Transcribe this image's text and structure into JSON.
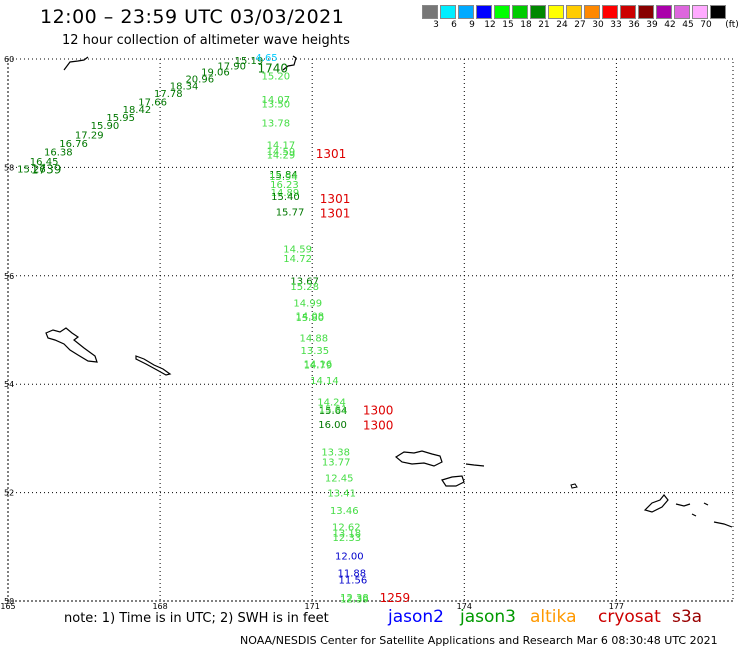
{
  "title": "12:00 – 23:59 UTC 03/03/2021",
  "subtitle": "12 hour collection of altimeter wave heights",
  "legend": {
    "unit": "(ft)",
    "bins": [
      {
        "label": "3",
        "color": "#777777"
      },
      {
        "label": "6",
        "color": "#00eeff"
      },
      {
        "label": "9",
        "color": "#00aaff"
      },
      {
        "label": "12",
        "color": "#0000ff"
      },
      {
        "label": "15",
        "color": "#00ff00"
      },
      {
        "label": "18",
        "color": "#00cc00"
      },
      {
        "label": "21",
        "color": "#008800"
      },
      {
        "label": "24",
        "color": "#ffff00"
      },
      {
        "label": "27",
        "color": "#ffcc00"
      },
      {
        "label": "30",
        "color": "#ff8800"
      },
      {
        "label": "33",
        "color": "#ff0000"
      },
      {
        "label": "36",
        "color": "#cc0000"
      },
      {
        "label": "39",
        "color": "#880000"
      },
      {
        "label": "42",
        "color": "#aa00aa"
      },
      {
        "label": "45",
        "color": "#dd66dd"
      },
      {
        "label": "70",
        "color": "#ffaaff"
      },
      {
        "label": "",
        "color": "#000000"
      }
    ]
  },
  "axes": {
    "lat_labels": [
      "60",
      "58",
      "56",
      "54",
      "52",
      "50"
    ],
    "lat_values": [
      60,
      58,
      56,
      54,
      52,
      50
    ],
    "lon_labels": [
      "165",
      "168",
      "171",
      "174",
      "177"
    ],
    "lon_values": [
      165,
      168,
      171,
      174,
      177
    ],
    "lon_range": [
      165,
      179.3
    ],
    "lat_range": [
      50,
      60
    ]
  },
  "colors": {
    "jason2": "#0000cc",
    "jason3": "#00aa00",
    "light_green": "#44dd44",
    "dark_green": "#007700",
    "cyan": "#00ccff",
    "red": "#dd0000"
  },
  "observations": [
    {
      "text": "15.26",
      "lon": 165.18,
      "lat": 57.98,
      "c": "dark_green"
    },
    {
      "text": "16.45",
      "lon": 165.43,
      "lat": 58.12,
      "c": "dark_green"
    },
    {
      "text": "16.38",
      "lon": 165.71,
      "lat": 58.29,
      "c": "dark_green"
    },
    {
      "text": "16.76",
      "lon": 166.01,
      "lat": 58.45,
      "c": "dark_green"
    },
    {
      "text": "17.29",
      "lon": 166.32,
      "lat": 58.61,
      "c": "dark_green"
    },
    {
      "text": "15.90",
      "lon": 166.63,
      "lat": 58.78,
      "c": "dark_green"
    },
    {
      "text": "15.95",
      "lon": 166.94,
      "lat": 58.93,
      "c": "dark_green"
    },
    {
      "text": "18.42",
      "lon": 167.26,
      "lat": 59.08,
      "c": "dark_green"
    },
    {
      "text": "17.66",
      "lon": 167.57,
      "lat": 59.22,
      "c": "dark_green"
    },
    {
      "text": "17.78",
      "lon": 167.88,
      "lat": 59.37,
      "c": "dark_green"
    },
    {
      "text": "18.34",
      "lon": 168.19,
      "lat": 59.51,
      "c": "dark_green"
    },
    {
      "text": "20.96",
      "lon": 168.5,
      "lat": 59.64,
      "c": "dark_green"
    },
    {
      "text": "19.06",
      "lon": 168.81,
      "lat": 59.77,
      "c": "dark_green"
    },
    {
      "text": "17.90",
      "lon": 169.13,
      "lat": 59.88,
      "c": "dark_green"
    },
    {
      "text": "15.19",
      "lon": 169.47,
      "lat": 59.98,
      "c": "dark_green"
    },
    {
      "text": "4.65",
      "lon": 169.88,
      "lat": 60.04,
      "c": "cyan"
    },
    {
      "text": "15.20",
      "lon": 170.0,
      "lat": 59.7,
      "c": "light_green"
    },
    {
      "text": "14.07",
      "lon": 170.0,
      "lat": 59.26,
      "c": "light_green"
    },
    {
      "text": "13.50",
      "lon": 170.0,
      "lat": 59.18,
      "c": "light_green"
    },
    {
      "text": "13.78",
      "lon": 170.0,
      "lat": 58.83,
      "c": "light_green"
    },
    {
      "text": "14.17",
      "lon": 170.1,
      "lat": 58.42,
      "c": "light_green"
    },
    {
      "text": "14.59",
      "lon": 170.1,
      "lat": 58.3,
      "c": "light_green"
    },
    {
      "text": "14.29",
      "lon": 170.1,
      "lat": 58.24,
      "c": "light_green"
    },
    {
      "text": "15.84",
      "lon": 170.15,
      "lat": 57.88,
      "c": "dark_green"
    },
    {
      "text": "15.94",
      "lon": 170.15,
      "lat": 57.84,
      "c": "light_green"
    },
    {
      "text": "16.23",
      "lon": 170.17,
      "lat": 57.69,
      "c": "light_green"
    },
    {
      "text": "14.89",
      "lon": 170.18,
      "lat": 57.55,
      "c": "light_green"
    },
    {
      "text": "15.40",
      "lon": 170.19,
      "lat": 57.47,
      "c": "dark_green"
    },
    {
      "text": "15.77",
      "lon": 170.28,
      "lat": 57.19,
      "c": "dark_green"
    },
    {
      "text": "14.59",
      "lon": 170.43,
      "lat": 56.5,
      "c": "light_green"
    },
    {
      "text": "14.72",
      "lon": 170.43,
      "lat": 56.33,
      "c": "light_green"
    },
    {
      "text": "13.67",
      "lon": 170.57,
      "lat": 55.91,
      "c": "dark_green"
    },
    {
      "text": "15.28",
      "lon": 170.57,
      "lat": 55.81,
      "c": "light_green"
    },
    {
      "text": "14.99",
      "lon": 170.63,
      "lat": 55.51,
      "c": "light_green"
    },
    {
      "text": "14.08",
      "lon": 170.67,
      "lat": 55.27,
      "c": "light_green"
    },
    {
      "text": "15.80",
      "lon": 170.67,
      "lat": 55.24,
      "c": "light_green"
    },
    {
      "text": "14.88",
      "lon": 170.75,
      "lat": 54.86,
      "c": "light_green"
    },
    {
      "text": "13.35",
      "lon": 170.77,
      "lat": 54.63,
      "c": "light_green"
    },
    {
      "text": "14.16",
      "lon": 170.83,
      "lat": 54.38,
      "c": "light_green"
    },
    {
      "text": "14.79",
      "lon": 170.83,
      "lat": 54.36,
      "c": "light_green"
    },
    {
      "text": "14.14",
      "lon": 170.96,
      "lat": 54.08,
      "c": "light_green"
    },
    {
      "text": "14.24",
      "lon": 171.1,
      "lat": 53.68,
      "c": "light_green"
    },
    {
      "text": "15.64",
      "lon": 171.13,
      "lat": 53.52,
      "c": "dark_green"
    },
    {
      "text": "15.61",
      "lon": 171.13,
      "lat": 53.55,
      "c": "light_green"
    },
    {
      "text": "16.00",
      "lon": 171.12,
      "lat": 53.27,
      "c": "dark_green"
    },
    {
      "text": "13.38",
      "lon": 171.18,
      "lat": 52.76,
      "c": "light_green"
    },
    {
      "text": "13.77",
      "lon": 171.19,
      "lat": 52.57,
      "c": "light_green"
    },
    {
      "text": "12.45",
      "lon": 171.25,
      "lat": 52.28,
      "c": "light_green"
    },
    {
      "text": "13.41",
      "lon": 171.3,
      "lat": 52.0,
      "c": "light_green"
    },
    {
      "text": "13.46",
      "lon": 171.35,
      "lat": 51.68,
      "c": "light_green"
    },
    {
      "text": "12.62",
      "lon": 171.39,
      "lat": 51.37,
      "c": "light_green"
    },
    {
      "text": "13.18",
      "lon": 171.4,
      "lat": 51.26,
      "c": "light_green"
    },
    {
      "text": "12.33",
      "lon": 171.4,
      "lat": 51.18,
      "c": "light_green"
    },
    {
      "text": "12.00",
      "lon": 171.45,
      "lat": 50.84,
      "c": "jason2"
    },
    {
      "text": "11.88",
      "lon": 171.5,
      "lat": 50.53,
      "c": "jason2"
    },
    {
      "text": "11.56",
      "lon": 171.52,
      "lat": 50.4,
      "c": "jason2"
    },
    {
      "text": "12.38",
      "lon": 171.55,
      "lat": 50.07,
      "c": "light_green"
    },
    {
      "text": "12.39",
      "lon": 171.55,
      "lat": 50.05,
      "c": "light_green"
    }
  ],
  "time_labels": [
    {
      "text": "1740",
      "lon": 169.92,
      "lat": 59.84,
      "c": "dark_green"
    },
    {
      "text": "1739",
      "lon": 165.45,
      "lat": 57.98,
      "c": "dark_green"
    },
    {
      "text": "1301",
      "lon": 171.07,
      "lat": 58.27,
      "c": "red"
    },
    {
      "text": "1301",
      "lon": 171.15,
      "lat": 57.44,
      "c": "red"
    },
    {
      "text": "1301",
      "lon": 171.15,
      "lat": 57.17,
      "c": "red"
    },
    {
      "text": "1300",
      "lon": 172.0,
      "lat": 53.53,
      "c": "red"
    },
    {
      "text": "1300",
      "lon": 172.0,
      "lat": 53.26,
      "c": "red"
    },
    {
      "text": "1259",
      "lon": 172.33,
      "lat": 50.07,
      "c": "red"
    }
  ],
  "note": "note:  1) Time is in UTC;  2) SWH is in feet",
  "satellites": [
    {
      "name": "jason2",
      "color": "#0000ff"
    },
    {
      "name": "jason3",
      "color": "#009900"
    },
    {
      "name": "altika",
      "color": "#ff9900"
    },
    {
      "name": "cryosat",
      "color": "#cc0000"
    },
    {
      "name": "s3a",
      "color": "#990000"
    }
  ],
  "credit": "NOAA/NESDIS Center for Satellite Applications and Research    Mar  6 08:30:48 UTC 2021"
}
